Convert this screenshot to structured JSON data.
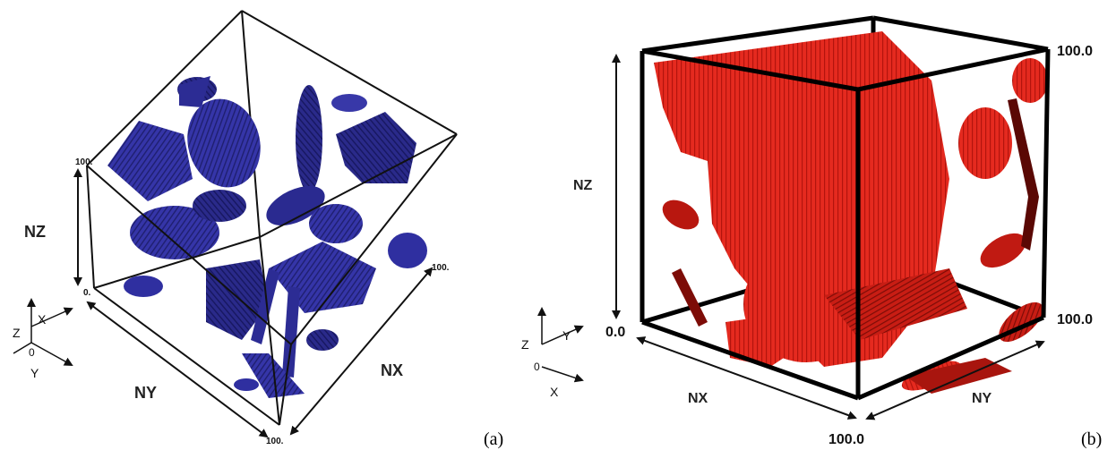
{
  "panel_a": {
    "caption": "(a)",
    "labels": {
      "nz": "NZ",
      "ny": "NY",
      "nx": "NX"
    },
    "ticks": {
      "top": "100.",
      "origin": "0.",
      "right": "100.",
      "bottom": "100."
    },
    "triad": {
      "z": "Z",
      "x": "X",
      "y": "Y",
      "o": "0"
    },
    "color": "#2e2e9c"
  },
  "panel_b": {
    "caption": "(b)",
    "labels": {
      "nz": "NZ",
      "nx": "NX",
      "ny": "NY"
    },
    "ticks": {
      "top": "100.0",
      "origin": "0.0",
      "right": "100.0",
      "bottom": "100.0"
    },
    "triad": {
      "z": "Z",
      "y": "Y",
      "x": "X",
      "o": "0"
    },
    "color": "#e2231a"
  }
}
